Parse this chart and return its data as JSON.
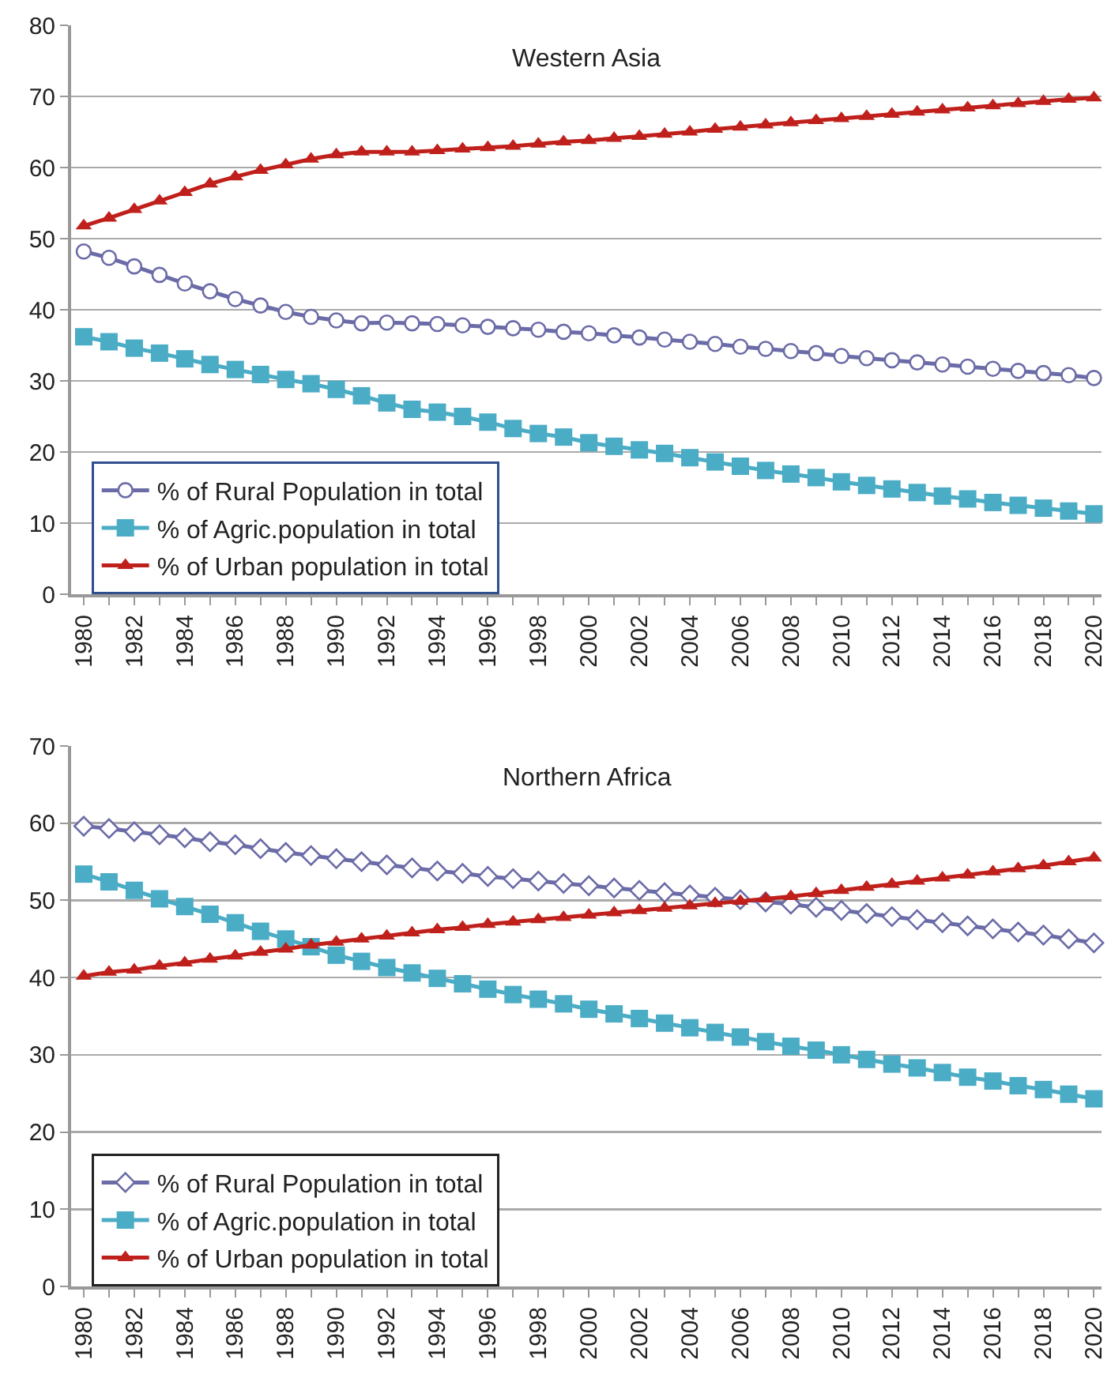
{
  "chart_data": [
    {
      "type": "line",
      "title": "Western Asia",
      "categories": [
        "1980",
        null,
        "1982",
        null,
        "1984",
        null,
        "1986",
        null,
        "1988",
        null,
        "1990",
        null,
        "1992",
        null,
        "1994",
        null,
        "1996",
        null,
        "1998",
        null,
        "2000",
        null,
        "2002",
        null,
        "2004",
        null,
        "2006",
        null,
        "2008",
        null,
        "2010",
        null,
        "2012",
        null,
        "2014",
        null,
        "2016",
        null,
        "2018",
        null,
        "2020"
      ],
      "ylim": [
        0,
        80
      ],
      "yticks": [
        0,
        10,
        20,
        30,
        40,
        50,
        60,
        70,
        80
      ],
      "grid": "y",
      "legend": "bottom left",
      "line_style": "solid",
      "series": [
        {
          "name": "% of Rural Population in total",
          "color": "#6b6ba8",
          "marker": "circle",
          "values": [
            48.2,
            47.3,
            46.1,
            44.9,
            43.7,
            42.6,
            41.5,
            40.6,
            39.7,
            39.0,
            38.5,
            38.1,
            38.2,
            38.1,
            38.0,
            37.8,
            37.6,
            37.4,
            37.2,
            36.9,
            36.7,
            36.4,
            36.1,
            35.8,
            35.5,
            35.2,
            34.8,
            34.5,
            34.2,
            33.9,
            33.5,
            33.2,
            32.9,
            32.6,
            32.3,
            32.0,
            31.7,
            31.4,
            31.1,
            30.8,
            30.4
          ]
        },
        {
          "name": "% of Agric.population in total",
          "color": "#4bacc6",
          "marker": "square",
          "values": [
            36.2,
            35.5,
            34.6,
            33.9,
            33.1,
            32.3,
            31.6,
            30.9,
            30.2,
            29.6,
            28.8,
            27.9,
            26.9,
            26.0,
            25.6,
            25.0,
            24.2,
            23.3,
            22.6,
            22.1,
            21.3,
            20.8,
            20.3,
            19.8,
            19.2,
            18.6,
            18.0,
            17.4,
            16.9,
            16.4,
            15.8,
            15.3,
            14.8,
            14.3,
            13.8,
            13.4,
            12.9,
            12.5,
            12.1,
            11.7,
            11.3
          ]
        },
        {
          "name": "% of Urban population in total",
          "color": "#c0201b",
          "marker": "triangle",
          "values": [
            51.8,
            52.9,
            54.1,
            55.3,
            56.5,
            57.7,
            58.7,
            59.6,
            60.4,
            61.2,
            61.8,
            62.2,
            62.2,
            62.2,
            62.4,
            62.6,
            62.8,
            63.0,
            63.3,
            63.6,
            63.8,
            64.1,
            64.4,
            64.7,
            65.0,
            65.4,
            65.7,
            66.0,
            66.3,
            66.6,
            66.9,
            67.2,
            67.5,
            67.8,
            68.1,
            68.4,
            68.7,
            69.0,
            69.3,
            69.6,
            69.8
          ]
        }
      ]
    },
    {
      "type": "line",
      "title": "Northern Africa",
      "categories": [
        "1980",
        null,
        "1982",
        null,
        "1984",
        null,
        "1986",
        null,
        "1988",
        null,
        "1990",
        null,
        "1992",
        null,
        "1994",
        null,
        "1996",
        null,
        "1998",
        null,
        "2000",
        null,
        "2002",
        null,
        "2004",
        null,
        "2006",
        null,
        "2008",
        null,
        "2010",
        null,
        "2012",
        null,
        "2014",
        null,
        "2016",
        null,
        "2018",
        null,
        "2020"
      ],
      "ylim": [
        0,
        70
      ],
      "yticks": [
        0,
        10,
        20,
        30,
        40,
        50,
        60,
        70
      ],
      "grid": "y",
      "legend": "bottom left",
      "line_style": "solid",
      "series": [
        {
          "name": "% of Rural Population in total",
          "color": "#6b6ba8",
          "marker": "diamond",
          "values": [
            59.6,
            59.3,
            58.9,
            58.5,
            58.1,
            57.6,
            57.2,
            56.7,
            56.2,
            55.8,
            55.4,
            55.0,
            54.6,
            54.2,
            53.8,
            53.5,
            53.1,
            52.8,
            52.5,
            52.2,
            51.9,
            51.6,
            51.3,
            51.0,
            50.7,
            50.4,
            50.1,
            49.8,
            49.5,
            49.1,
            48.7,
            48.3,
            47.9,
            47.5,
            47.1,
            46.7,
            46.3,
            45.9,
            45.5,
            45.0,
            44.5
          ]
        },
        {
          "name": "% of Agric.population in total",
          "color": "#4bacc6",
          "marker": "square",
          "values": [
            53.4,
            52.4,
            51.3,
            50.2,
            49.2,
            48.2,
            47.1,
            46.0,
            45.0,
            44.0,
            42.9,
            42.1,
            41.3,
            40.6,
            39.9,
            39.2,
            38.5,
            37.8,
            37.2,
            36.6,
            35.9,
            35.3,
            34.7,
            34.1,
            33.5,
            32.9,
            32.3,
            31.7,
            31.1,
            30.6,
            30.0,
            29.4,
            28.8,
            28.3,
            27.7,
            27.1,
            26.6,
            26.0,
            25.5,
            24.9,
            24.3
          ]
        },
        {
          "name": "% of Urban population in total",
          "color": "#c0201b",
          "marker": "triangle",
          "values": [
            40.2,
            40.7,
            41.0,
            41.5,
            41.9,
            42.4,
            42.8,
            43.3,
            43.7,
            44.2,
            44.6,
            45.0,
            45.4,
            45.8,
            46.2,
            46.5,
            46.9,
            47.2,
            47.5,
            47.8,
            48.1,
            48.4,
            48.7,
            49.0,
            49.3,
            49.6,
            49.9,
            50.2,
            50.5,
            50.9,
            51.3,
            51.7,
            52.1,
            52.5,
            52.9,
            53.3,
            53.7,
            54.1,
            54.5,
            55.0,
            55.5
          ]
        }
      ]
    }
  ]
}
